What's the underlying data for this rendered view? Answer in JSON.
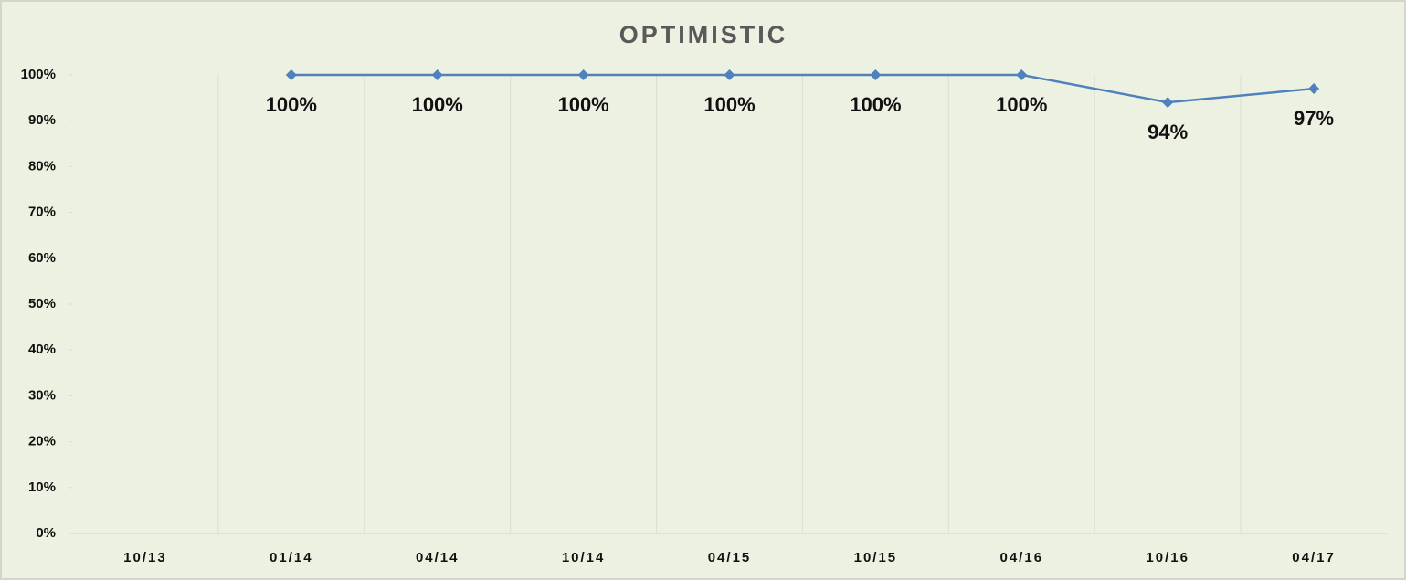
{
  "chart_data": {
    "type": "line",
    "title": "OPTIMISTIC",
    "categories": [
      "10/13",
      "01/14",
      "04/14",
      "10/14",
      "04/15",
      "10/15",
      "04/16",
      "10/16",
      "04/17"
    ],
    "series": [
      {
        "name": "OPTIMISTIC",
        "color": "#4f81bd",
        "values": [
          null,
          100,
          100,
          100,
          100,
          100,
          100,
          94,
          97
        ],
        "value_labels": [
          null,
          "100%",
          "100%",
          "100%",
          "100%",
          "100%",
          "100%",
          "94%",
          "97%"
        ]
      }
    ],
    "ylim": [
      0,
      100
    ],
    "yticks": [
      {
        "value": 0,
        "label": "0%"
      },
      {
        "value": 10,
        "label": "10%"
      },
      {
        "value": 20,
        "label": "20%"
      },
      {
        "value": 30,
        "label": "30%"
      },
      {
        "value": 40,
        "label": "40%"
      },
      {
        "value": 50,
        "label": "50%"
      },
      {
        "value": 60,
        "label": "60%"
      },
      {
        "value": 70,
        "label": "70%"
      },
      {
        "value": 80,
        "label": "80%"
      },
      {
        "value": 90,
        "label": "90%"
      },
      {
        "value": 100,
        "label": "100%"
      }
    ]
  }
}
